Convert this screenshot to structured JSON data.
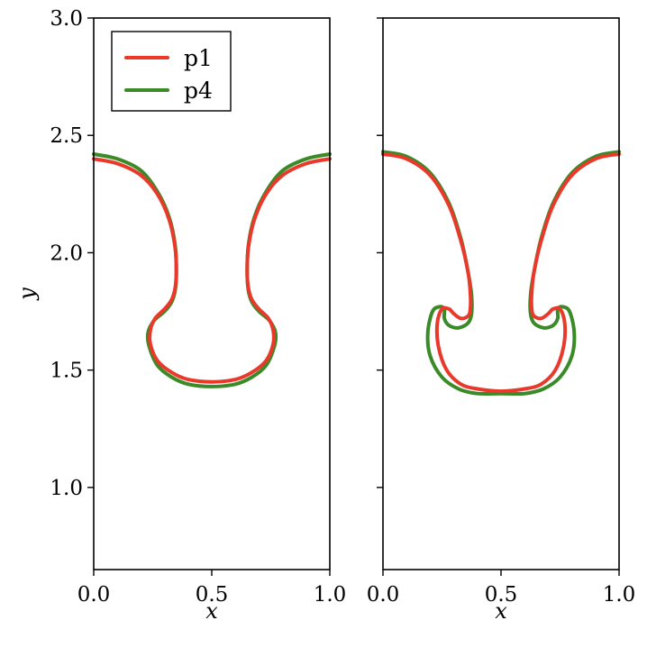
{
  "colors": {
    "p1": "#e8392b",
    "p4": "#3b8a28"
  },
  "chart_data": [
    {
      "type": "line",
      "title": "",
      "xlabel": "x",
      "ylabel": "y",
      "xlim": [
        0.0,
        1.0
      ],
      "ylim": [
        0.65,
        3.0
      ],
      "xticks": [
        "0.0",
        "0.5",
        "1.0"
      ],
      "yticks": [
        "1.0",
        "1.5",
        "2.0",
        "2.5",
        "3.0"
      ],
      "legend": {
        "location": "upper-left",
        "entries": [
          "p1",
          "p4"
        ]
      },
      "series": [
        {
          "name": "p1",
          "color": "#e8392b",
          "x": [
            0.0,
            0.1,
            0.2,
            0.27,
            0.32,
            0.345,
            0.35,
            0.345,
            0.33,
            0.3,
            0.26,
            0.24,
            0.24,
            0.27,
            0.33,
            0.4,
            0.5,
            0.6,
            0.67,
            0.73,
            0.76,
            0.76,
            0.74,
            0.7,
            0.67,
            0.655,
            0.65,
            0.655,
            0.68,
            0.73,
            0.8,
            0.9,
            1.0
          ],
          "y": [
            2.4,
            2.38,
            2.33,
            2.25,
            2.14,
            2.02,
            1.92,
            1.85,
            1.8,
            1.76,
            1.72,
            1.67,
            1.61,
            1.54,
            1.49,
            1.46,
            1.45,
            1.46,
            1.49,
            1.54,
            1.61,
            1.67,
            1.72,
            1.76,
            1.8,
            1.85,
            1.92,
            2.02,
            2.14,
            2.25,
            2.33,
            2.38,
            2.4
          ]
        },
        {
          "name": "p4",
          "color": "#3b8a28",
          "x": [
            0.0,
            0.1,
            0.2,
            0.27,
            0.32,
            0.345,
            0.35,
            0.345,
            0.33,
            0.3,
            0.255,
            0.23,
            0.235,
            0.27,
            0.33,
            0.4,
            0.5,
            0.6,
            0.67,
            0.73,
            0.765,
            0.77,
            0.745,
            0.7,
            0.67,
            0.655,
            0.65,
            0.655,
            0.68,
            0.73,
            0.8,
            0.9,
            1.0
          ],
          "y": [
            2.42,
            2.4,
            2.35,
            2.26,
            2.15,
            2.03,
            1.92,
            1.84,
            1.79,
            1.75,
            1.71,
            1.66,
            1.6,
            1.52,
            1.47,
            1.44,
            1.43,
            1.44,
            1.47,
            1.52,
            1.6,
            1.66,
            1.71,
            1.75,
            1.79,
            1.84,
            1.92,
            2.03,
            2.15,
            2.26,
            2.35,
            2.4,
            2.42
          ]
        }
      ]
    },
    {
      "type": "line",
      "title": "",
      "xlabel": "x",
      "ylabel": "",
      "xlim": [
        0.0,
        1.0
      ],
      "ylim": [
        0.65,
        3.0
      ],
      "xticks": [
        "0.0",
        "0.5",
        "1.0"
      ],
      "yticks": [],
      "series": [
        {
          "name": "p1",
          "color": "#e8392b",
          "x": [
            0.0,
            0.1,
            0.2,
            0.28,
            0.33,
            0.36,
            0.37,
            0.37,
            0.36,
            0.33,
            0.3,
            0.28,
            0.25,
            0.23,
            0.235,
            0.27,
            0.33,
            0.4,
            0.5,
            0.6,
            0.67,
            0.73,
            0.765,
            0.77,
            0.75,
            0.72,
            0.7,
            0.67,
            0.64,
            0.63,
            0.63,
            0.64,
            0.67,
            0.72,
            0.8,
            0.9,
            1.0
          ],
          "y": [
            2.42,
            2.4,
            2.33,
            2.2,
            2.05,
            1.92,
            1.83,
            1.76,
            1.73,
            1.72,
            1.74,
            1.76,
            1.76,
            1.7,
            1.6,
            1.5,
            1.44,
            1.42,
            1.41,
            1.42,
            1.44,
            1.5,
            1.6,
            1.7,
            1.76,
            1.76,
            1.74,
            1.72,
            1.73,
            1.76,
            1.83,
            1.92,
            2.05,
            2.2,
            2.33,
            2.4,
            2.42
          ]
        },
        {
          "name": "p4",
          "color": "#3b8a28",
          "x": [
            0.0,
            0.1,
            0.2,
            0.28,
            0.33,
            0.36,
            0.375,
            0.375,
            0.36,
            0.32,
            0.28,
            0.26,
            0.26,
            0.24,
            0.21,
            0.19,
            0.2,
            0.25,
            0.32,
            0.4,
            0.5,
            0.6,
            0.68,
            0.75,
            0.8,
            0.81,
            0.79,
            0.76,
            0.74,
            0.74,
            0.72,
            0.68,
            0.64,
            0.625,
            0.625,
            0.64,
            0.67,
            0.72,
            0.8,
            0.9,
            1.0
          ],
          "y": [
            2.43,
            2.41,
            2.34,
            2.21,
            2.06,
            1.92,
            1.82,
            1.74,
            1.7,
            1.68,
            1.69,
            1.72,
            1.76,
            1.77,
            1.75,
            1.66,
            1.56,
            1.47,
            1.42,
            1.4,
            1.4,
            1.4,
            1.42,
            1.47,
            1.56,
            1.66,
            1.75,
            1.77,
            1.76,
            1.72,
            1.69,
            1.68,
            1.7,
            1.74,
            1.82,
            1.92,
            2.06,
            2.21,
            2.34,
            2.41,
            2.43
          ]
        }
      ]
    }
  ]
}
